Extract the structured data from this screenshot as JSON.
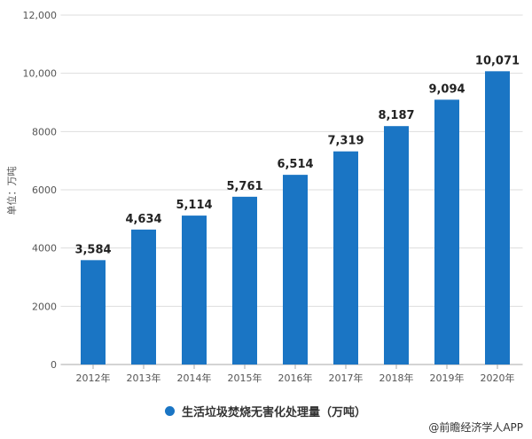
{
  "chart_data": {
    "type": "bar",
    "categories": [
      "2012年",
      "2013年",
      "2014年",
      "2015年",
      "2016年",
      "2017年",
      "2018年",
      "2019年",
      "2020年"
    ],
    "series": [
      {
        "name": "生活垃圾焚烧无害化处理量（万吨）",
        "values": [
          3584,
          4634,
          5114,
          5761,
          6514,
          7319,
          8187,
          9094,
          10071
        ]
      }
    ],
    "data_labels": [
      "3,584",
      "4,634",
      "5,114",
      "5,761",
      "6,514",
      "7,319",
      "8,187",
      "9,094",
      "10,071"
    ],
    "ylabel": "单位：万吨",
    "ylim": [
      0,
      12000
    ],
    "yticks": [
      0,
      2000,
      4000,
      6000,
      8000,
      10000,
      12000
    ],
    "ytick_labels": [
      "0",
      "2000",
      "4000",
      "6000",
      "8000",
      "10,000",
      "12,000"
    ],
    "grid": true,
    "legend": "bottom",
    "color": "#1a75c4"
  },
  "credit": "@前瞻经济学人APP"
}
